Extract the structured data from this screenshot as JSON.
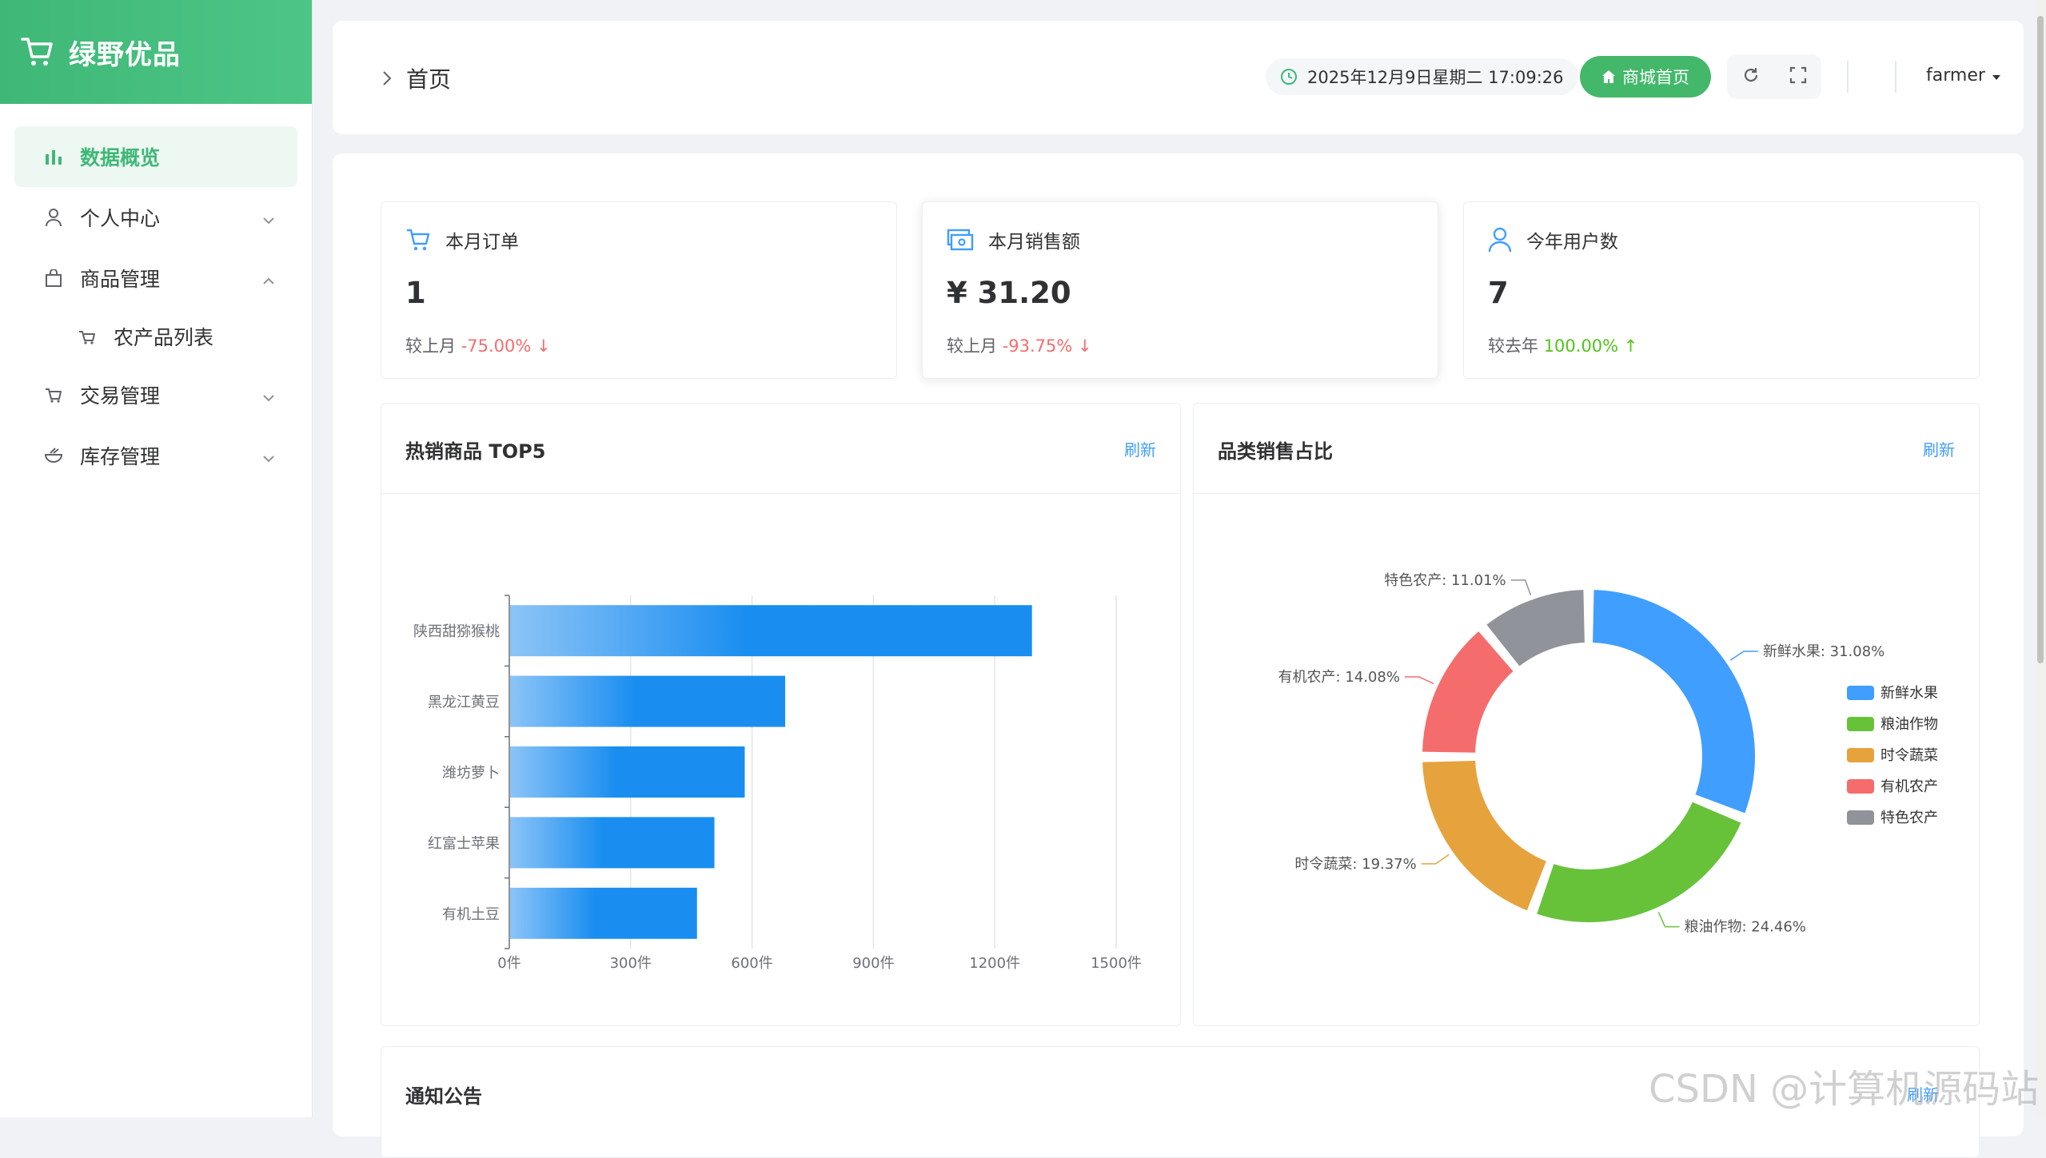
{
  "app": {
    "title": "绿野优品"
  },
  "sidebar": {
    "items": [
      {
        "label": "数据概览",
        "icon": "bar-chart-icon",
        "active": true
      },
      {
        "label": "个人中心",
        "icon": "user-icon"
      },
      {
        "label": "商品管理",
        "icon": "bag-icon"
      },
      {
        "label": "农产品列表",
        "icon": "basket-icon"
      },
      {
        "label": "交易管理",
        "icon": "cart-icon"
      },
      {
        "label": "库存管理",
        "icon": "bowl-icon"
      }
    ]
  },
  "header": {
    "breadcrumb": "首页",
    "datetime": "2025年12月9日星期二 17:09:26",
    "shop_button": "商城首页",
    "username": "farmer"
  },
  "stats": [
    {
      "title": "本月订单",
      "value": "1",
      "compare_label": "较上月",
      "change": "-75.00% ↓",
      "trend": "down"
    },
    {
      "title": "本月销售额",
      "value": "¥ 31.20",
      "compare_label": "较上月",
      "change": "-93.75% ↓",
      "trend": "down"
    },
    {
      "title": "今年用户数",
      "value": "7",
      "compare_label": "较去年",
      "change": "100.00% ↑",
      "trend": "up"
    }
  ],
  "panels": {
    "top5": {
      "title": "热销商品 TOP5",
      "refresh": "刷新"
    },
    "category": {
      "title": "品类销售占比",
      "refresh": "刷新"
    },
    "notice": {
      "title": "通知公告",
      "refresh": "刷新"
    }
  },
  "chart_data": [
    {
      "type": "bar",
      "orientation": "horizontal",
      "categories": [
        "陕西甜猕猴桃",
        "黑龙江黄豆",
        "潍坊萝卜",
        "红富士苹果",
        "有机土豆"
      ],
      "values": [
        1290,
        680,
        580,
        505,
        462
      ],
      "x_ticks": [
        "0件",
        "300件",
        "600件",
        "900件",
        "1200件",
        "1500件"
      ],
      "xlim": [
        0,
        1500
      ],
      "grid": true,
      "bar_gradient": [
        "#8cc4f7",
        "#1a8ef0"
      ]
    },
    {
      "type": "pie",
      "donut": true,
      "slices": [
        {
          "name": "新鲜水果",
          "value": 31.08,
          "label": "新鲜水果: 31.08%",
          "color": "#409eff"
        },
        {
          "name": "粮油作物",
          "value": 24.46,
          "label": "粮油作物: 24.46%",
          "color": "#67c23a"
        },
        {
          "name": "时令蔬菜",
          "value": 19.37,
          "label": "时令蔬菜: 19.37%",
          "color": "#e6a23c"
        },
        {
          "name": "有机农产",
          "value": 14.08,
          "label": "有机农产: 14.08%",
          "color": "#f56c6c"
        },
        {
          "name": "特色农产",
          "value": 11.01,
          "label": "特色农产: 11.01%",
          "color": "#909399"
        }
      ],
      "legend_position": "right"
    }
  ],
  "watermark": "CSDN @计算机源码站"
}
